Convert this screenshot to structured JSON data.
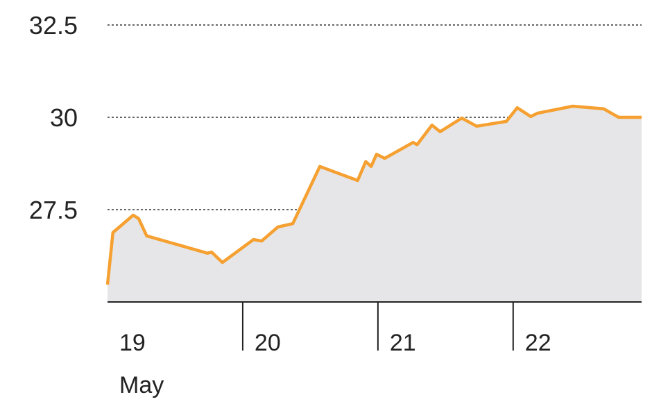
{
  "chart_data": {
    "type": "area",
    "xlabel": "May",
    "x": [
      19.0,
      19.04,
      19.19,
      19.23,
      19.29,
      19.74,
      19.77,
      19.85,
      20.08,
      20.14,
      20.26,
      20.37,
      20.57,
      20.85,
      20.91,
      20.95,
      20.99,
      21.05,
      21.26,
      21.29,
      21.4,
      21.46,
      21.62,
      21.73,
      21.95,
      22.03,
      22.13,
      22.18,
      22.44,
      22.67,
      22.78,
      22.95
    ],
    "values": [
      25.47,
      26.88,
      27.35,
      27.26,
      26.79,
      26.32,
      26.35,
      26.07,
      26.69,
      26.65,
      27.03,
      27.12,
      28.67,
      28.29,
      28.8,
      28.67,
      29.0,
      28.89,
      29.32,
      29.26,
      29.79,
      29.61,
      29.98,
      29.76,
      29.89,
      30.26,
      30.02,
      30.11,
      30.3,
      30.23,
      30.0,
      30.0
    ],
    "color": "#f5a030",
    "area_color": "#e6e6e8",
    "xlim": [
      19,
      22.95
    ],
    "xticks": [
      19,
      20,
      21,
      22
    ],
    "ylim": [
      25,
      32.5
    ],
    "yticks": [
      27.5,
      30,
      32.5
    ],
    "grid": true
  }
}
